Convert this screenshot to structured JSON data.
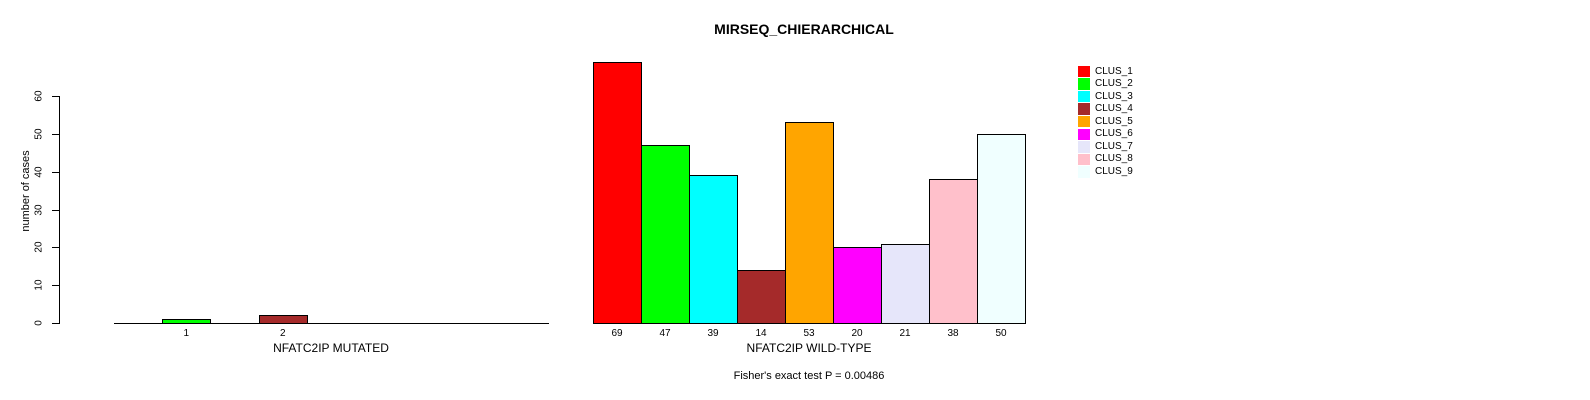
{
  "chart_data": {
    "type": "bar",
    "title": "MIRSEQ_CHIERARCHICAL",
    "ylabel": "number of cases",
    "ylim": [
      0,
      60
    ],
    "yticks": [
      0,
      10,
      20,
      30,
      40,
      50,
      60
    ],
    "grid": false,
    "legend_position": "top-right",
    "categories": [
      "CLUS_1",
      "CLUS_2",
      "CLUS_3",
      "CLUS_4",
      "CLUS_5",
      "CLUS_6",
      "CLUS_7",
      "CLUS_8",
      "CLUS_9"
    ],
    "colors": [
      "#FF0000",
      "#00FF00",
      "#00FFFF",
      "#A52A2A",
      "#FFA500",
      "#FF00FF",
      "#E6E6FA",
      "#FFC0CB",
      "#F0FFFF"
    ],
    "legend": {
      "position": "top-right",
      "entries": [
        "CLUS_1",
        "CLUS_2",
        "CLUS_3",
        "CLUS_4",
        "CLUS_5",
        "CLUS_6",
        "CLUS_7",
        "CLUS_8",
        "CLUS_9"
      ]
    },
    "panels": [
      {
        "xlabel": "NFATC2IP MUTATED",
        "values": [
          0,
          1,
          0,
          2,
          0,
          0,
          0,
          0,
          0
        ],
        "bar_labels": [
          "",
          "1",
          "",
          "2",
          "",
          "",
          "",
          "",
          ""
        ]
      },
      {
        "xlabel": "NFATC2IP WILD-TYPE",
        "values": [
          69,
          47,
          39,
          14,
          53,
          20,
          21,
          38,
          50
        ],
        "bar_labels": [
          "69",
          "47",
          "39",
          "14",
          "53",
          "20",
          "21",
          "38",
          "50"
        ]
      }
    ],
    "caption": "Fisher's exact test P = 0.00486"
  }
}
